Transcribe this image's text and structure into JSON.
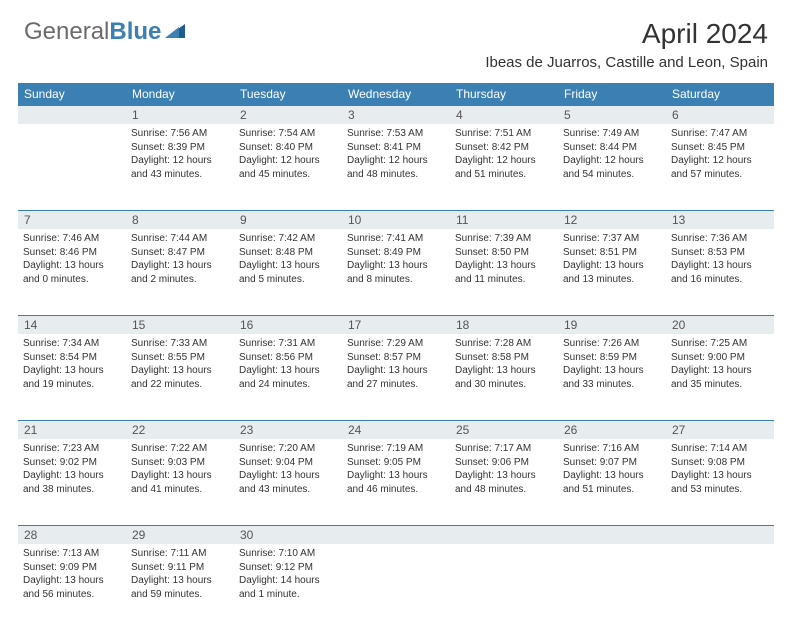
{
  "logo": {
    "text_gray": "General",
    "text_blue": "Blue"
  },
  "header": {
    "month_title": "April 2024",
    "location": "Ibeas de Juarros, Castille and Leon, Spain"
  },
  "colors": {
    "header_bg": "#3b7fb3",
    "date_row_bg": "#e7ecef",
    "border": "#3b7fb3"
  },
  "day_names": [
    "Sunday",
    "Monday",
    "Tuesday",
    "Wednesday",
    "Thursday",
    "Friday",
    "Saturday"
  ],
  "weeks": [
    {
      "dates": [
        "",
        "1",
        "2",
        "3",
        "4",
        "5",
        "6"
      ],
      "cells": [
        null,
        {
          "sunrise": "Sunrise: 7:56 AM",
          "sunset": "Sunset: 8:39 PM",
          "day1": "Daylight: 12 hours",
          "day2": "and 43 minutes."
        },
        {
          "sunrise": "Sunrise: 7:54 AM",
          "sunset": "Sunset: 8:40 PM",
          "day1": "Daylight: 12 hours",
          "day2": "and 45 minutes."
        },
        {
          "sunrise": "Sunrise: 7:53 AM",
          "sunset": "Sunset: 8:41 PM",
          "day1": "Daylight: 12 hours",
          "day2": "and 48 minutes."
        },
        {
          "sunrise": "Sunrise: 7:51 AM",
          "sunset": "Sunset: 8:42 PM",
          "day1": "Daylight: 12 hours",
          "day2": "and 51 minutes."
        },
        {
          "sunrise": "Sunrise: 7:49 AM",
          "sunset": "Sunset: 8:44 PM",
          "day1": "Daylight: 12 hours",
          "day2": "and 54 minutes."
        },
        {
          "sunrise": "Sunrise: 7:47 AM",
          "sunset": "Sunset: 8:45 PM",
          "day1": "Daylight: 12 hours",
          "day2": "and 57 minutes."
        }
      ]
    },
    {
      "dates": [
        "7",
        "8",
        "9",
        "10",
        "11",
        "12",
        "13"
      ],
      "cells": [
        {
          "sunrise": "Sunrise: 7:46 AM",
          "sunset": "Sunset: 8:46 PM",
          "day1": "Daylight: 13 hours",
          "day2": "and 0 minutes."
        },
        {
          "sunrise": "Sunrise: 7:44 AM",
          "sunset": "Sunset: 8:47 PM",
          "day1": "Daylight: 13 hours",
          "day2": "and 2 minutes."
        },
        {
          "sunrise": "Sunrise: 7:42 AM",
          "sunset": "Sunset: 8:48 PM",
          "day1": "Daylight: 13 hours",
          "day2": "and 5 minutes."
        },
        {
          "sunrise": "Sunrise: 7:41 AM",
          "sunset": "Sunset: 8:49 PM",
          "day1": "Daylight: 13 hours",
          "day2": "and 8 minutes."
        },
        {
          "sunrise": "Sunrise: 7:39 AM",
          "sunset": "Sunset: 8:50 PM",
          "day1": "Daylight: 13 hours",
          "day2": "and 11 minutes."
        },
        {
          "sunrise": "Sunrise: 7:37 AM",
          "sunset": "Sunset: 8:51 PM",
          "day1": "Daylight: 13 hours",
          "day2": "and 13 minutes."
        },
        {
          "sunrise": "Sunrise: 7:36 AM",
          "sunset": "Sunset: 8:53 PM",
          "day1": "Daylight: 13 hours",
          "day2": "and 16 minutes."
        }
      ]
    },
    {
      "dates": [
        "14",
        "15",
        "16",
        "17",
        "18",
        "19",
        "20"
      ],
      "cells": [
        {
          "sunrise": "Sunrise: 7:34 AM",
          "sunset": "Sunset: 8:54 PM",
          "day1": "Daylight: 13 hours",
          "day2": "and 19 minutes."
        },
        {
          "sunrise": "Sunrise: 7:33 AM",
          "sunset": "Sunset: 8:55 PM",
          "day1": "Daylight: 13 hours",
          "day2": "and 22 minutes."
        },
        {
          "sunrise": "Sunrise: 7:31 AM",
          "sunset": "Sunset: 8:56 PM",
          "day1": "Daylight: 13 hours",
          "day2": "and 24 minutes."
        },
        {
          "sunrise": "Sunrise: 7:29 AM",
          "sunset": "Sunset: 8:57 PM",
          "day1": "Daylight: 13 hours",
          "day2": "and 27 minutes."
        },
        {
          "sunrise": "Sunrise: 7:28 AM",
          "sunset": "Sunset: 8:58 PM",
          "day1": "Daylight: 13 hours",
          "day2": "and 30 minutes."
        },
        {
          "sunrise": "Sunrise: 7:26 AM",
          "sunset": "Sunset: 8:59 PM",
          "day1": "Daylight: 13 hours",
          "day2": "and 33 minutes."
        },
        {
          "sunrise": "Sunrise: 7:25 AM",
          "sunset": "Sunset: 9:00 PM",
          "day1": "Daylight: 13 hours",
          "day2": "and 35 minutes."
        }
      ]
    },
    {
      "dates": [
        "21",
        "22",
        "23",
        "24",
        "25",
        "26",
        "27"
      ],
      "cells": [
        {
          "sunrise": "Sunrise: 7:23 AM",
          "sunset": "Sunset: 9:02 PM",
          "day1": "Daylight: 13 hours",
          "day2": "and 38 minutes."
        },
        {
          "sunrise": "Sunrise: 7:22 AM",
          "sunset": "Sunset: 9:03 PM",
          "day1": "Daylight: 13 hours",
          "day2": "and 41 minutes."
        },
        {
          "sunrise": "Sunrise: 7:20 AM",
          "sunset": "Sunset: 9:04 PM",
          "day1": "Daylight: 13 hours",
          "day2": "and 43 minutes."
        },
        {
          "sunrise": "Sunrise: 7:19 AM",
          "sunset": "Sunset: 9:05 PM",
          "day1": "Daylight: 13 hours",
          "day2": "and 46 minutes."
        },
        {
          "sunrise": "Sunrise: 7:17 AM",
          "sunset": "Sunset: 9:06 PM",
          "day1": "Daylight: 13 hours",
          "day2": "and 48 minutes."
        },
        {
          "sunrise": "Sunrise: 7:16 AM",
          "sunset": "Sunset: 9:07 PM",
          "day1": "Daylight: 13 hours",
          "day2": "and 51 minutes."
        },
        {
          "sunrise": "Sunrise: 7:14 AM",
          "sunset": "Sunset: 9:08 PM",
          "day1": "Daylight: 13 hours",
          "day2": "and 53 minutes."
        }
      ]
    },
    {
      "dates": [
        "28",
        "29",
        "30",
        "",
        "",
        "",
        ""
      ],
      "cells": [
        {
          "sunrise": "Sunrise: 7:13 AM",
          "sunset": "Sunset: 9:09 PM",
          "day1": "Daylight: 13 hours",
          "day2": "and 56 minutes."
        },
        {
          "sunrise": "Sunrise: 7:11 AM",
          "sunset": "Sunset: 9:11 PM",
          "day1": "Daylight: 13 hours",
          "day2": "and 59 minutes."
        },
        {
          "sunrise": "Sunrise: 7:10 AM",
          "sunset": "Sunset: 9:12 PM",
          "day1": "Daylight: 14 hours",
          "day2": "and 1 minute."
        },
        null,
        null,
        null,
        null
      ]
    }
  ]
}
